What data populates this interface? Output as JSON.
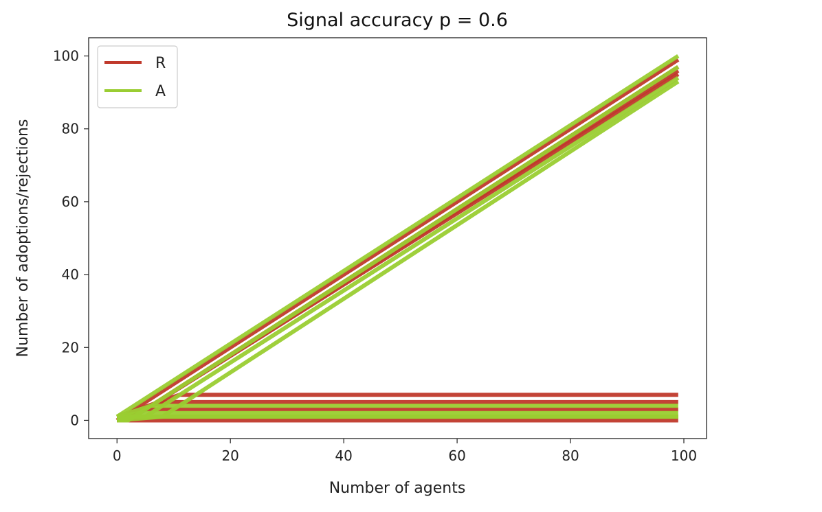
{
  "chart_data": {
    "type": "line",
    "title": "Signal accuracy p =  0.6",
    "xlabel": "Number of agents",
    "ylabel": "Number of adoptions/rejections",
    "xlim": [
      -5,
      104
    ],
    "ylim": [
      -5,
      105
    ],
    "xticks": [
      0,
      20,
      40,
      60,
      80,
      100
    ],
    "yticks": [
      0,
      20,
      40,
      60,
      80,
      100
    ],
    "grid": false,
    "legend_position": "top-left",
    "legend": [
      {
        "label": "R",
        "color": "#c0392b"
      },
      {
        "label": "A",
        "color": "#9acd32"
      }
    ],
    "series": [
      {
        "name": "R",
        "color": "#c0392b",
        "note": "multiple simulation runs",
        "runs": [
          {
            "x": [
              0,
              99
            ],
            "y": [
              0,
              99
            ]
          },
          {
            "x": [
              0,
              2,
              99
            ],
            "y": [
              0,
              0,
              97
            ]
          },
          {
            "x": [
              0,
              4,
              99
            ],
            "y": [
              0,
              2,
              95
            ]
          },
          {
            "x": [
              0,
              3,
              99
            ],
            "y": [
              1,
              1,
              96
            ]
          },
          {
            "x": [
              0,
              99
            ],
            "y": [
              0,
              0
            ]
          },
          {
            "x": [
              0,
              3,
              99
            ],
            "y": [
              1,
              1,
              1
            ]
          },
          {
            "x": [
              0,
              5,
              99
            ],
            "y": [
              1,
              3,
              3
            ]
          },
          {
            "x": [
              0,
              8,
              99
            ],
            "y": [
              1,
              5,
              5
            ]
          },
          {
            "x": [
              0,
              11,
              99
            ],
            "y": [
              1,
              7,
              7
            ]
          }
        ]
      },
      {
        "name": "A",
        "color": "#9acd32",
        "note": "multiple simulation runs",
        "runs": [
          {
            "x": [
              0,
              99
            ],
            "y": [
              1,
              100
            ]
          },
          {
            "x": [
              0,
              5,
              99
            ],
            "y": [
              1,
              1,
              94
            ]
          },
          {
            "x": [
              0,
              8,
              99
            ],
            "y": [
              0,
              1,
              93
            ]
          },
          {
            "x": [
              0,
              2,
              99
            ],
            "y": [
              0,
              0,
              97
            ]
          },
          {
            "x": [
              0,
              99
            ],
            "y": [
              1,
              1
            ]
          },
          {
            "x": [
              0,
              4,
              99
            ],
            "y": [
              1,
              2,
              2
            ]
          },
          {
            "x": [
              0,
              6,
              99
            ],
            "y": [
              1,
              4,
              4
            ]
          },
          {
            "x": [
              0,
              3,
              99
            ],
            "y": [
              0,
              1,
              1
            ]
          }
        ]
      }
    ]
  }
}
